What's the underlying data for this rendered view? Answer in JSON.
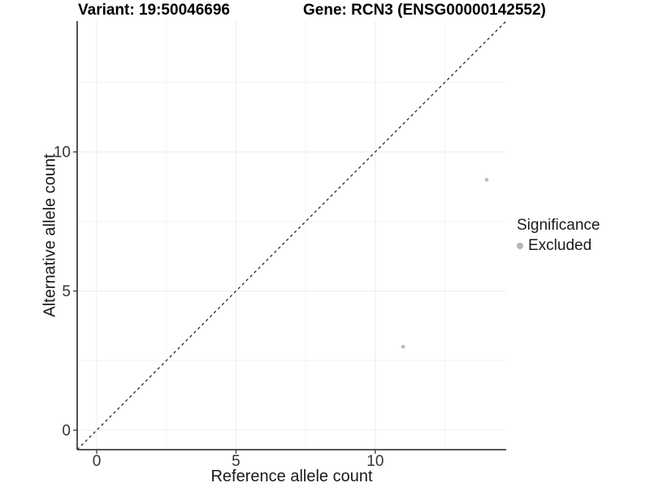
{
  "chart_data": {
    "type": "scatter",
    "title_left": "Variant: 19:50046696",
    "title_right": "Gene: RCN3 (ENSG00000142552)",
    "xlabel": "Reference allele count",
    "ylabel": "Alternative allele count",
    "xlim": [
      -0.7,
      14.7
    ],
    "ylim": [
      -0.7,
      14.7
    ],
    "xticks": [
      0,
      5,
      10
    ],
    "yticks": [
      0,
      5,
      10
    ],
    "xminor": [
      2.5,
      7.5,
      12.5
    ],
    "yminor": [
      2.5,
      7.5,
      12.5
    ],
    "grid": "major-and-minor",
    "identity_line": {
      "from": [
        -0.7,
        -0.7
      ],
      "to": [
        14.7,
        14.7
      ],
      "style": "dashed",
      "color": "#1a1a1a"
    },
    "series": [
      {
        "name": "Excluded",
        "color": "#bdbdbd",
        "points": [
          [
            11,
            3
          ],
          [
            14,
            9
          ]
        ]
      }
    ],
    "legend": {
      "title": "Significance",
      "position": "right",
      "items": [
        {
          "label": "Excluded",
          "color": "#b5b5b5"
        }
      ]
    }
  },
  "colors": {
    "background": "#ffffff",
    "axis_line": "#404040",
    "tick_mark": "#404040",
    "tick_label": "#333333",
    "grid_major": "#ececec",
    "grid_minor": "#f4f4f4"
  }
}
